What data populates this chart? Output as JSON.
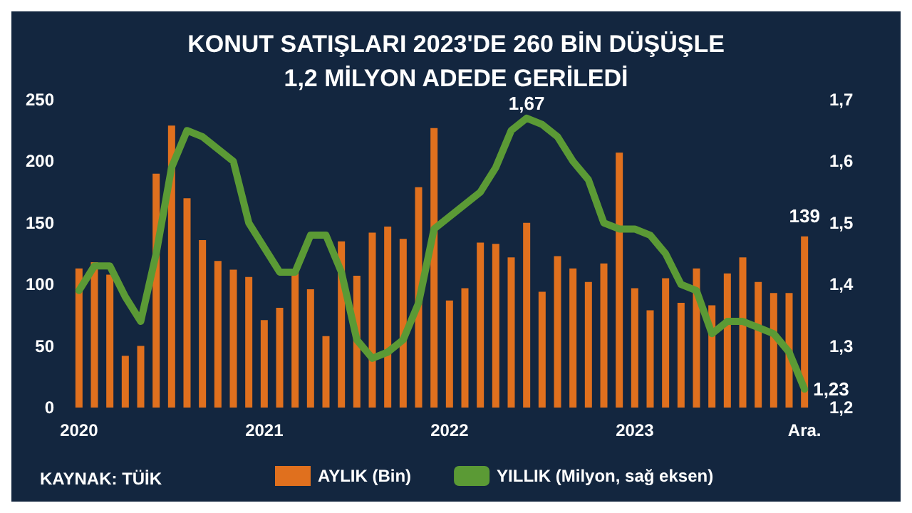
{
  "chart_data": {
    "type": "bar",
    "title": "KONUT SATIŞLARI 2023'DE 260 BİN DÜŞÜŞLE\n1,2 MİLYON ADEDE GERİLEDİ",
    "categories": [
      "2020",
      null,
      null,
      null,
      null,
      null,
      null,
      null,
      null,
      null,
      null,
      null,
      "2021",
      null,
      null,
      null,
      null,
      null,
      null,
      null,
      null,
      null,
      null,
      null,
      "2022",
      null,
      null,
      null,
      null,
      null,
      null,
      null,
      null,
      null,
      null,
      null,
      "2023",
      null,
      null,
      null,
      null,
      null,
      null,
      null,
      null,
      null,
      null,
      "Ara."
    ],
    "series": [
      {
        "name": "AYLIK (Bin)",
        "color": "#e0701e",
        "values": [
          113,
          118,
          108,
          42,
          50,
          190,
          229,
          170,
          136,
          119,
          112,
          106,
          71,
          81,
          110,
          96,
          58,
          135,
          107,
          142,
          147,
          137,
          179,
          227,
          87,
          97,
          134,
          133,
          122,
          150,
          94,
          123,
          113,
          102,
          117,
          207,
          97,
          79,
          105,
          85,
          113,
          83,
          109,
          122,
          102,
          93,
          93,
          139
        ],
        "value_labels": [
          null,
          null,
          null,
          null,
          null,
          null,
          null,
          null,
          null,
          null,
          null,
          null,
          null,
          null,
          null,
          null,
          null,
          null,
          null,
          null,
          null,
          null,
          null,
          null,
          null,
          null,
          null,
          null,
          null,
          null,
          null,
          null,
          null,
          null,
          null,
          null,
          null,
          null,
          null,
          null,
          null,
          null,
          null,
          null,
          null,
          null,
          null,
          "139"
        ]
      },
      {
        "name": "YILLIK (Milyon, sağ eksen)",
        "type": "line",
        "axis": "y2",
        "color": "#5b9a35",
        "values": [
          1.39,
          1.43,
          1.43,
          1.38,
          1.34,
          1.45,
          1.59,
          1.65,
          1.64,
          1.62,
          1.6,
          1.5,
          1.46,
          1.42,
          1.42,
          1.48,
          1.48,
          1.42,
          1.31,
          1.28,
          1.29,
          1.31,
          1.37,
          1.49,
          1.51,
          1.53,
          1.55,
          1.59,
          1.65,
          1.67,
          1.66,
          1.64,
          1.6,
          1.57,
          1.5,
          1.49,
          1.49,
          1.48,
          1.45,
          1.4,
          1.39,
          1.32,
          1.34,
          1.34,
          1.33,
          1.32,
          1.29,
          1.23
        ],
        "value_labels": [
          null,
          null,
          null,
          null,
          null,
          null,
          null,
          null,
          null,
          null,
          null,
          null,
          null,
          null,
          null,
          null,
          null,
          null,
          null,
          null,
          null,
          null,
          null,
          null,
          null,
          null,
          null,
          null,
          null,
          "1,67",
          null,
          null,
          null,
          null,
          null,
          null,
          null,
          null,
          null,
          null,
          null,
          null,
          null,
          null,
          null,
          null,
          null,
          "1,23"
        ]
      }
    ],
    "ylim": [
      0,
      250
    ],
    "yticks": [
      0,
      50,
      100,
      150,
      200,
      250
    ],
    "y2lim": [
      1.2,
      1.7
    ],
    "y2ticks": [
      {
        "value": 1.2,
        "label": "1,2"
      },
      {
        "value": 1.3,
        "label": "1,3"
      },
      {
        "value": 1.4,
        "label": "1,4"
      },
      {
        "value": 1.5,
        "label": "1,5"
      },
      {
        "value": 1.6,
        "label": "1,6"
      },
      {
        "value": 1.7,
        "label": "1,7"
      }
    ],
    "legend": "bottom",
    "annotations": [
      "KAYNAK: TÜİK"
    ]
  }
}
